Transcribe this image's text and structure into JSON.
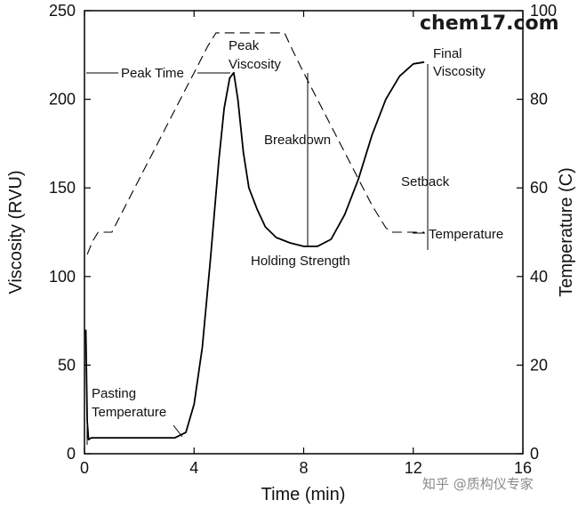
{
  "chart_data": {
    "type": "line",
    "xlabel": "Time (min)",
    "ylabel": "Viscosity (RVU)",
    "y2label": "Temperature (C)",
    "xlim": [
      0,
      16
    ],
    "ylim": [
      0,
      250
    ],
    "y2lim": [
      0,
      100
    ],
    "x_ticks": [
      0,
      4,
      8,
      12,
      16
    ],
    "y_ticks": [
      0,
      50,
      100,
      150,
      200,
      250
    ],
    "y2_ticks": [
      0,
      20,
      40,
      60,
      80,
      100
    ],
    "grid": false,
    "series": [
      {
        "axis": "left",
        "style": "solid",
        "x": [
          0.05,
          0.1,
          0.15,
          0.25,
          0.5,
          1.0,
          2.0,
          3.0,
          3.3,
          3.7,
          4.0,
          4.3,
          4.6,
          4.9,
          5.1,
          5.3,
          5.45,
          5.6,
          5.8,
          6.0,
          6.3,
          6.6,
          7.0,
          7.5,
          8.0,
          8.5,
          9.0,
          9.5,
          10.0,
          10.5,
          11.0,
          11.5,
          12.0,
          12.4
        ],
        "y": [
          70,
          18,
          8,
          9,
          9,
          9,
          9,
          9,
          9,
          12,
          28,
          60,
          110,
          165,
          195,
          212,
          215,
          200,
          170,
          150,
          138,
          128,
          122,
          119,
          117,
          117,
          121,
          135,
          155,
          180,
          200,
          213,
          220,
          221
        ]
      },
      {
        "axis": "right",
        "style": "dashed",
        "x": [
          0.1,
          0.3,
          0.5,
          1.0,
          1.5,
          2.0,
          2.5,
          3.0,
          3.5,
          4.0,
          4.5,
          4.8,
          5.5,
          6.0,
          6.5,
          7.0,
          7.3,
          7.6,
          8.0,
          8.5,
          9.0,
          9.5,
          10.0,
          10.5,
          11.0,
          11.2,
          11.5,
          12.0,
          12.4
        ],
        "y": [
          45,
          48,
          50,
          50,
          56,
          62,
          68,
          74,
          80,
          86,
          92,
          95,
          95,
          95,
          95,
          95,
          95,
          91,
          86,
          80,
          74,
          68,
          62,
          56,
          51,
          50,
          50,
          50,
          50
        ]
      }
    ],
    "annotations": [
      "Peak Time",
      "Peak Viscosity",
      "Breakdown",
      "Holding Strength",
      "Final Viscosity",
      "Setback",
      "Temperature",
      "Pasting Temperature"
    ]
  },
  "watermark": {
    "site": "chem17.com",
    "credit": "知乎 @质构仪专家"
  }
}
